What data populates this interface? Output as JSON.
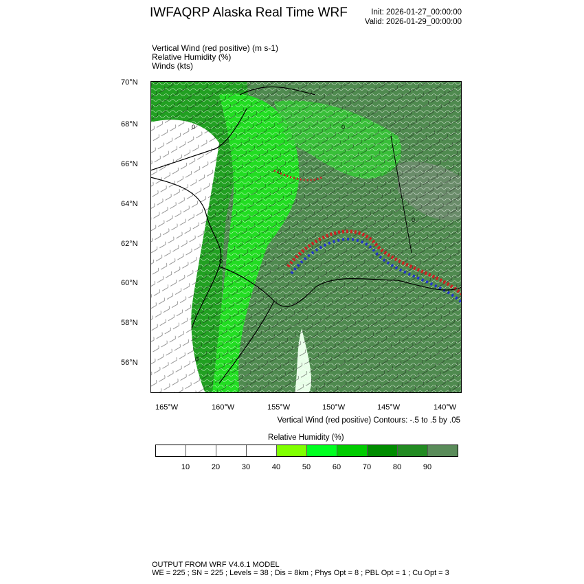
{
  "header": {
    "title": "IWFAQRP Alaska Real Time WRF",
    "init": "Init: 2026-01-27_00:00:00",
    "valid": "Valid: 2026-01-29_00:00:00"
  },
  "fields": [
    "Vertical Wind (red positive)   (m s-1)",
    "Relative Humidity   (%)",
    "Winds   (kts)"
  ],
  "map": {
    "lat_labels": [
      "70°N",
      "68°N",
      "66°N",
      "64°N",
      "62°N",
      "60°N",
      "58°N",
      "56°N"
    ],
    "lon_labels": [
      "165°W",
      "160°W",
      "155°W",
      "150°W",
      "145°W",
      "140°W"
    ],
    "contour_label": "0",
    "colors": {
      "positive": "#cc2222",
      "negative": "#2233cc",
      "coast": "#000000"
    }
  },
  "contour_note": "Vertical Wind (red positive) Contours: -.5 to .5 by .05",
  "colorbar": {
    "title": "Relative Humidity  (%)",
    "labels": [
      "10",
      "20",
      "30",
      "40",
      "50",
      "60",
      "70",
      "80",
      "90"
    ],
    "colors": [
      "#ffffff",
      "#ffffff",
      "#ffffff",
      "#ffffff",
      "#80ff00",
      "#00ff20",
      "#00cc00",
      "#008c00",
      "#228b22",
      "#5a8c5a"
    ]
  },
  "footer": {
    "line1": "OUTPUT FROM WRF V4.6.1 MODEL",
    "line2": "WE = 225 ; SN = 225 ; Levels = 38 ; Dis = 8km ; Phys Opt = 8 ; PBL Opt = 1 ; Cu Opt = 3"
  }
}
